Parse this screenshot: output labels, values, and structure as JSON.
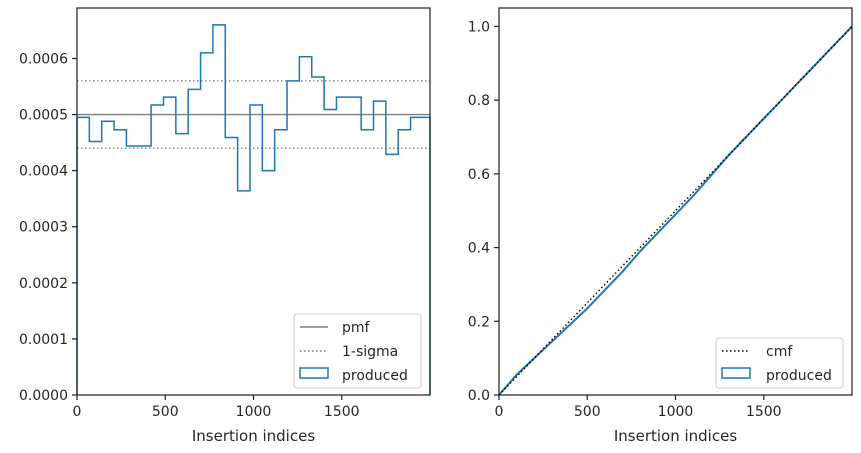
{
  "chart_data": [
    {
      "type": "histogram",
      "xlabel": "Insertion indices",
      "ylabel": "",
      "xlim": [
        0,
        2000
      ],
      "ylim": [
        0,
        0.00069
      ],
      "xticks": [
        0,
        500,
        1000,
        1500
      ],
      "xtick_labels": [
        "0",
        "500",
        "1000",
        "1500"
      ],
      "yticks": [
        0,
        0.0001,
        0.0002,
        0.0003,
        0.0004,
        0.0005,
        0.0006
      ],
      "ytick_labels": [
        "0.0000",
        "0.0001",
        "0.0002",
        "0.0003",
        "0.0004",
        "0.0005",
        "0.0006"
      ],
      "grid": false,
      "legend_position": "lower-right",
      "bin_edges": [
        0,
        70,
        140,
        210,
        280,
        350,
        420,
        490,
        560,
        630,
        700,
        770,
        840,
        910,
        980,
        1050,
        1120,
        1190,
        1260,
        1330,
        1400,
        1470,
        1540,
        1610,
        1680,
        1750,
        1820,
        1890,
        1960,
        2000
      ],
      "series": [
        {
          "name": "produced",
          "style": "step",
          "color": "#1f77b4",
          "values": [
            0.000495,
            0.000452,
            0.000488,
            0.000473,
            0.000444,
            0.000444,
            0.000517,
            0.000531,
            0.000466,
            0.000545,
            0.00061,
            0.00066,
            0.000459,
            0.000364,
            0.000517,
            0.0004,
            0.000473,
            0.00056,
            0.000603,
            0.000567,
            0.000509,
            0.000531,
            0.000531,
            0.000473,
            0.000524,
            0.000429,
            0.000473,
            0.000495,
            0.000495
          ]
        },
        {
          "name": "pmf",
          "style": "solid",
          "color": "#808080",
          "value": 0.0005
        },
        {
          "name": "1-sigma",
          "style": "dotted",
          "color": "#808080",
          "values": [
            0.00056,
            0.00044
          ]
        }
      ]
    },
    {
      "type": "line",
      "xlabel": "Insertion indices",
      "ylabel": "",
      "xlim": [
        0,
        2000
      ],
      "ylim": [
        0,
        1.05
      ],
      "xticks": [
        0,
        500,
        1000,
        1500
      ],
      "xtick_labels": [
        "0",
        "500",
        "1000",
        "1500"
      ],
      "yticks": [
        0,
        0.2,
        0.4,
        0.6,
        0.8,
        1.0
      ],
      "ytick_labels": [
        "0.0",
        "0.2",
        "0.4",
        "0.6",
        "0.8",
        "1.0"
      ],
      "grid": false,
      "legend_position": "lower-right",
      "series": [
        {
          "name": "cmf",
          "style": "dotted",
          "color": "#000000",
          "x": [
            0,
            2000
          ],
          "y": [
            0,
            1.0
          ]
        },
        {
          "name": "produced",
          "style": "step",
          "color": "#1f77b4",
          "x": [
            0,
            100,
            200,
            300,
            400,
            500,
            600,
            700,
            800,
            900,
            1000,
            1100,
            1200,
            1300,
            1400,
            1500,
            1600,
            1700,
            1800,
            1900,
            2000
          ],
          "y": [
            0,
            0.055,
            0.1,
            0.145,
            0.19,
            0.235,
            0.285,
            0.335,
            0.39,
            0.44,
            0.49,
            0.54,
            0.595,
            0.65,
            0.7,
            0.75,
            0.8,
            0.85,
            0.9,
            0.95,
            1.0
          ]
        }
      ]
    }
  ]
}
